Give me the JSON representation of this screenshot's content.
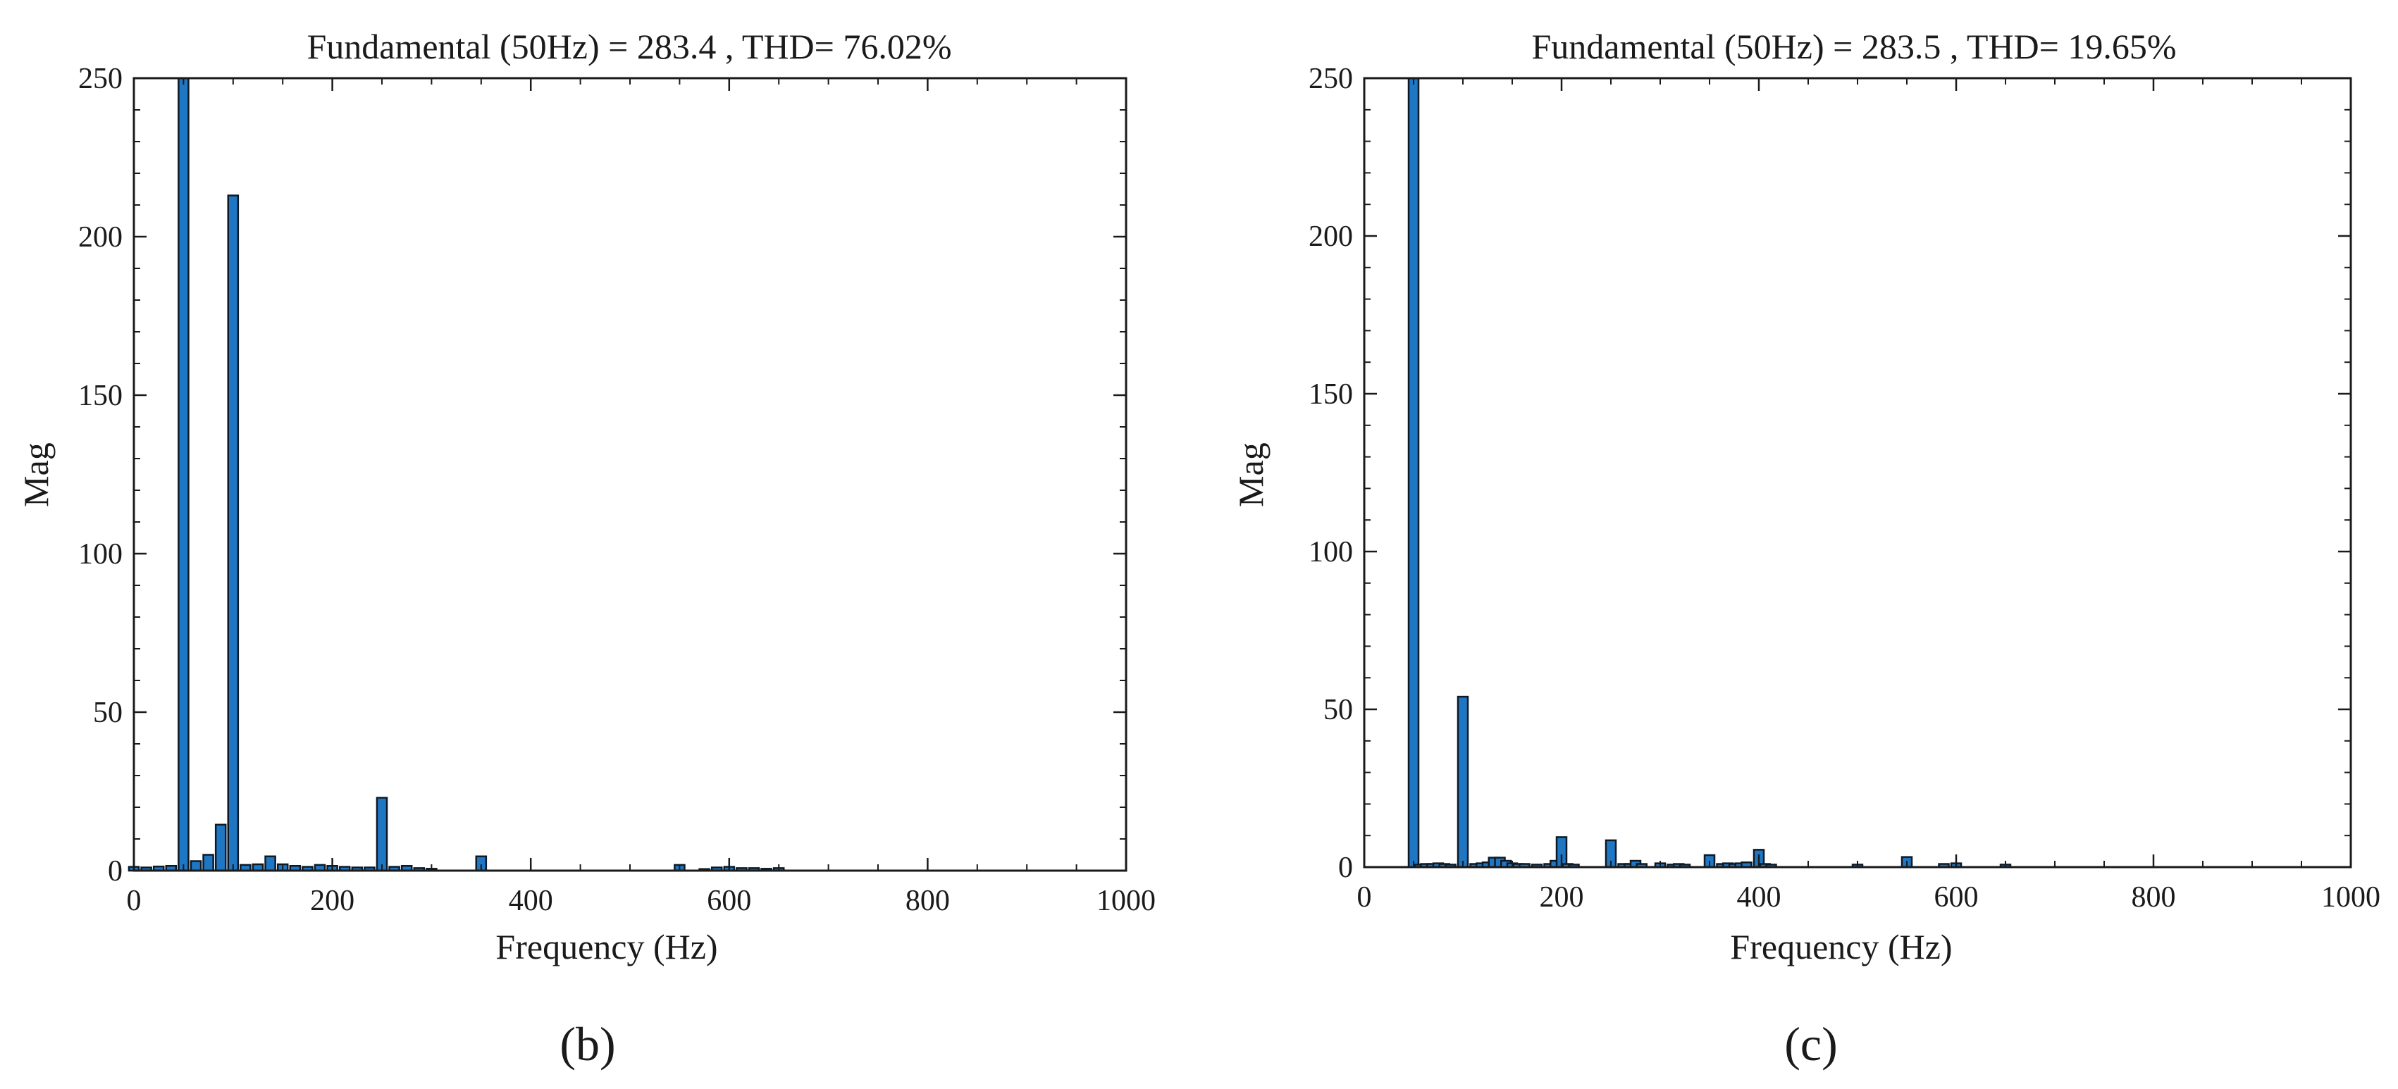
{
  "figure": {
    "colors": {
      "bar_fill": "#1f77c4",
      "bar_edge": "#0d1a26",
      "axis": "#1a1a1a",
      "background": "#ffffff"
    }
  },
  "chart_data": [
    {
      "type": "bar",
      "panel_label": "(b)",
      "title": "Fundamental (50Hz) = 283.4 , THD= 76.02%",
      "xlabel": "Frequency (Hz)",
      "ylabel": "Mag",
      "xlim": [
        0,
        1000
      ],
      "ylim": [
        0,
        250
      ],
      "xticks": [
        0,
        200,
        400,
        600,
        800,
        1000
      ],
      "yticks": [
        0,
        50,
        100,
        150,
        200,
        250
      ],
      "x": [
        0,
        12.5,
        25,
        37.5,
        50,
        62.5,
        75,
        87.5,
        100,
        112.5,
        125,
        137.5,
        150,
        162.5,
        175,
        187.5,
        200,
        212.5,
        225,
        237.5,
        250,
        262.5,
        275,
        287.5,
        300,
        350,
        550,
        575,
        587.5,
        600,
        612.5,
        625,
        637.5,
        650
      ],
      "values": [
        1.2,
        1.0,
        1.3,
        1.5,
        250,
        3.0,
        5.0,
        14.5,
        213,
        1.8,
        2.0,
        4.5,
        2.0,
        1.5,
        1.2,
        1.8,
        1.5,
        1.2,
        1.0,
        1.0,
        23,
        1.2,
        1.5,
        0.8,
        0.6,
        4.5,
        1.8,
        0.5,
        1.0,
        1.2,
        0.8,
        0.8,
        0.6,
        0.8
      ]
    },
    {
      "type": "bar",
      "panel_label": "(c)",
      "title": "Fundamental (50Hz) = 283.5 , THD= 19.65%",
      "xlabel": "Frequency (Hz)",
      "ylabel": "Mag",
      "xlim": [
        0,
        1000
      ],
      "ylim": [
        0,
        250
      ],
      "xticks": [
        0,
        200,
        400,
        600,
        800,
        1000
      ],
      "yticks": [
        0,
        50,
        100,
        150,
        200,
        250
      ],
      "x": [
        50,
        56.25,
        62.5,
        68.75,
        75,
        81.25,
        87.5,
        100,
        112.5,
        118.75,
        125,
        131.25,
        137.5,
        143.75,
        150,
        156.25,
        162.5,
        175,
        187.5,
        193.75,
        200,
        206.25,
        212.5,
        250,
        262.5,
        268.75,
        275,
        281.25,
        300,
        312.5,
        318.75,
        325,
        350,
        362.5,
        368.75,
        375,
        381.25,
        387.5,
        400,
        406.25,
        412.5,
        500,
        550,
        587.5,
        600,
        650
      ],
      "values": [
        250,
        0.8,
        1.0,
        1.0,
        1.2,
        1.0,
        0.8,
        54,
        1.0,
        1.2,
        1.5,
        3.0,
        3.0,
        2.0,
        1.2,
        1.0,
        1.0,
        0.8,
        1.0,
        2.0,
        9.5,
        1.0,
        0.8,
        8.5,
        1.0,
        1.0,
        2.0,
        1.0,
        1.2,
        0.8,
        1.0,
        0.8,
        3.8,
        1.0,
        1.2,
        1.0,
        1.2,
        1.5,
        5.5,
        1.0,
        0.8,
        0.8,
        3.2,
        1.0,
        1.2,
        0.8
      ]
    }
  ]
}
